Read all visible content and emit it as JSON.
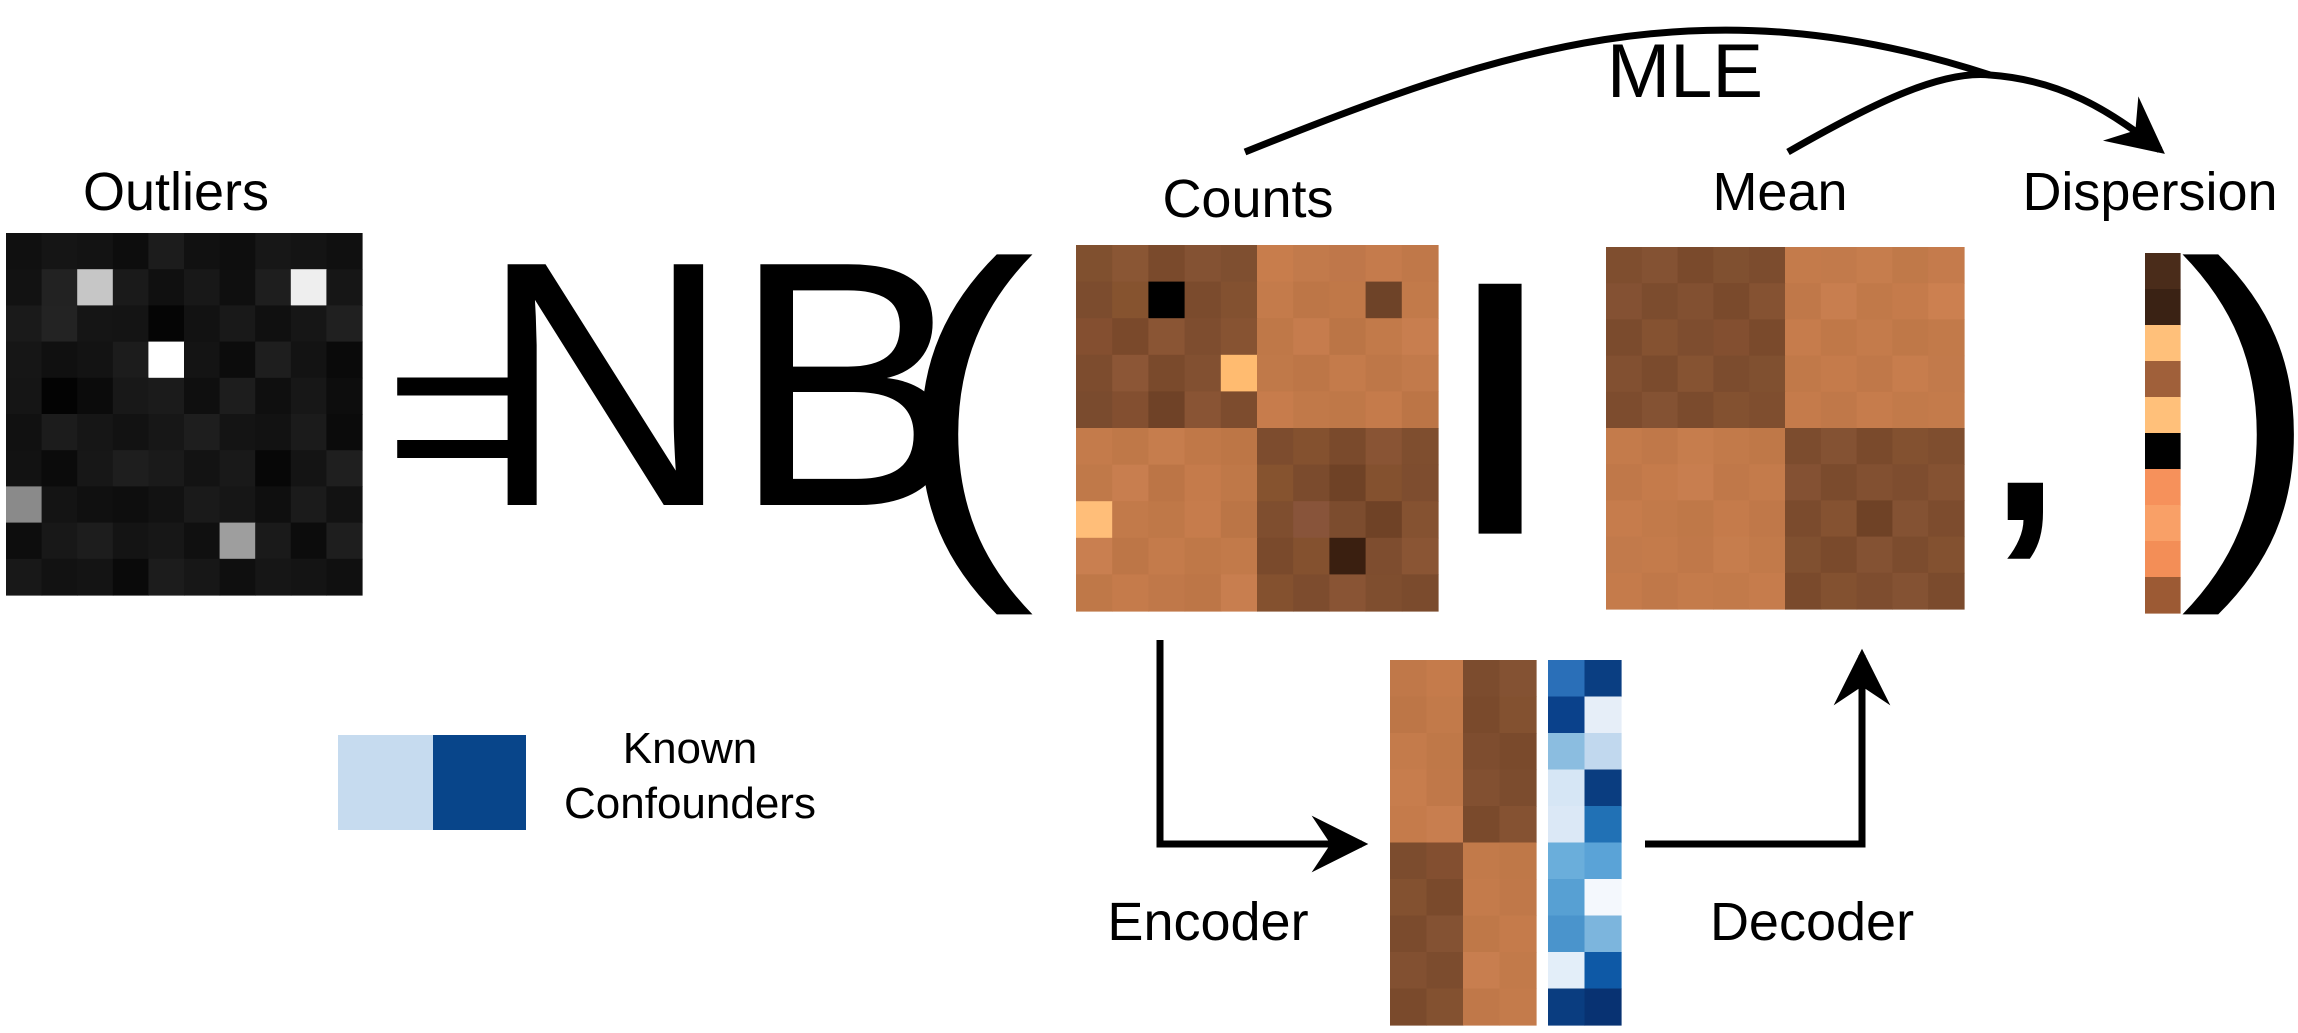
{
  "labels": {
    "outliers": "Outliers",
    "equals": "=",
    "nb": "NB",
    "open_paren": "(",
    "close_paren": ")",
    "bar": "|",
    "comma": ",",
    "counts": "Counts",
    "mean": "Mean",
    "dispersion": "Dispersion",
    "mle": "MLE",
    "encoder": "Encoder",
    "decoder": "Decoder",
    "legend_line1": "Known",
    "legend_line2": "Confounders"
  },
  "legend_colors": [
    "#c6dbef",
    "#08458a"
  ],
  "outliers_grid": [
    [
      "#101010",
      "#151515",
      "#131313",
      "#0d0d0d",
      "#1c1c1c",
      "#111111",
      "#0e0e0e",
      "#171717",
      "#141414",
      "#101010"
    ],
    [
      "#121212",
      "#222222",
      "#c6c6c6",
      "#1a1a1a",
      "#101010",
      "#181818",
      "#0f0f0f",
      "#1e1e1e",
      "#eeeeee",
      "#161616"
    ],
    [
      "#1a1a1a",
      "#232323",
      "#151515",
      "#141414",
      "#050505",
      "#121212",
      "#191919",
      "#101010",
      "#161616",
      "#202020"
    ],
    [
      "#161616",
      "#101010",
      "#131313",
      "#1c1c1c",
      "#ffffff",
      "#141414",
      "#0c0c0c",
      "#1e1e1e",
      "#131313",
      "#0a0a0a"
    ],
    [
      "#151515",
      "#030303",
      "#0b0b0b",
      "#181818",
      "#1b1b1b",
      "#0f0f0f",
      "#1d1d1d",
      "#0f0f0f",
      "#171717",
      "#0d0d0d"
    ],
    [
      "#111111",
      "#1c1c1c",
      "#161616",
      "#121212",
      "#171717",
      "#1e1e1e",
      "#141414",
      "#121212",
      "#1b1b1b",
      "#0b0b0b"
    ],
    [
      "#121212",
      "#0b0b0b",
      "#171717",
      "#1e1e1e",
      "#1a1a1a",
      "#131313",
      "#191919",
      "#070707",
      "#141414",
      "#1f1f1f"
    ],
    [
      "#8a8a8a",
      "#141414",
      "#101010",
      "#0e0e0e",
      "#121212",
      "#1a1a1a",
      "#161616",
      "#0f0f0f",
      "#1b1b1b",
      "#121212"
    ],
    [
      "#0d0d0d",
      "#181818",
      "#1d1d1d",
      "#141414",
      "#171717",
      "#101010",
      "#9e9e9e",
      "#1a1a1a",
      "#0c0c0c",
      "#1e1e1e"
    ],
    [
      "#181818",
      "#121212",
      "#141414",
      "#0a0a0a",
      "#1c1c1c",
      "#171717",
      "#0f0f0f",
      "#161616",
      "#141414",
      "#101010"
    ]
  ],
  "counts_grid": [
    [
      "#80502f",
      "#8a5634",
      "#7a4a2c",
      "#845233",
      "#7f4f30",
      "#c87d4c",
      "#c27a4b",
      "#bf774a",
      "#c57b4c",
      "#c07849"
    ],
    [
      "#7c4c2e",
      "#86532f",
      "#000000",
      "#7b4b2d",
      "#835130",
      "#c47b4b",
      "#bd7647",
      "#c07848",
      "#6e4328",
      "#c27a4a"
    ],
    [
      "#844f30",
      "#7a492b",
      "#8a5534",
      "#7e4d2f",
      "#875332",
      "#bf7848",
      "#c67c4d",
      "#bb7546",
      "#c27a4a",
      "#c87e4f"
    ],
    [
      "#7d4c2e",
      "#8c5636",
      "#7a4a2c",
      "#825031",
      "#ffbb70",
      "#c07949",
      "#bd7647",
      "#c47b4b",
      "#be7748",
      "#c27a4b"
    ],
    [
      "#7a4b2e",
      "#834f30",
      "#6f4227",
      "#895434",
      "#7d4c2e",
      "#c77c4c",
      "#c17949",
      "#bf7848",
      "#c57b4b",
      "#bc7546"
    ],
    [
      "#c47b4b",
      "#bf7848",
      "#c67d4d",
      "#c07848",
      "#bd7646",
      "#7d4c2e",
      "#84512f",
      "#7a4a2c",
      "#895434",
      "#7f4e2f"
    ],
    [
      "#c07949",
      "#c87e4f",
      "#bc7546",
      "#c57b4b",
      "#bf7848",
      "#86532f",
      "#7b4b2d",
      "#6f4226",
      "#84512f",
      "#7e4d2f"
    ],
    [
      "#ffbe79",
      "#c27a4a",
      "#bf7848",
      "#c67c4c",
      "#bb7546",
      "#7f4e2f",
      "#88543a",
      "#7c4c2e",
      "#6f4226",
      "#855231"
    ],
    [
      "#c97f50",
      "#bd7647",
      "#c47b4b",
      "#bf7848",
      "#c27a4a",
      "#7a4a2c",
      "#84512f",
      "#3a1f10",
      "#7e4d2f",
      "#8a5534"
    ],
    [
      "#bf7848",
      "#c57b4b",
      "#c07849",
      "#bd7647",
      "#c87e4f",
      "#84512f",
      "#7d4c2e",
      "#895434",
      "#7f4e2f",
      "#7b4b2d"
    ]
  ],
  "mean_grid": [
    [
      "#7f4e2f",
      "#845233",
      "#7a4a2c",
      "#805030",
      "#7c4c2e",
      "#c47b4b",
      "#c27a4b",
      "#c67d4d",
      "#c07949",
      "#c57b4c"
    ],
    [
      "#845133",
      "#7c4c2e",
      "#825031",
      "#7a4a2c",
      "#855232",
      "#c07849",
      "#c87e4f",
      "#c17949",
      "#c57b4b",
      "#cc8050"
    ],
    [
      "#7b4b2d",
      "#855231",
      "#7e4d2f",
      "#834f30",
      "#7a4a2c",
      "#c67c4c",
      "#c07848",
      "#c47b4b",
      "#bf7848",
      "#c27a4a"
    ],
    [
      "#825031",
      "#7b4b2d",
      "#865332",
      "#7c4c2e",
      "#805030",
      "#c17949",
      "#c57b4b",
      "#c07849",
      "#c77d4d",
      "#c27a4b"
    ],
    [
      "#7d4c2e",
      "#845233",
      "#7b4b2d",
      "#835130",
      "#7f4e2f",
      "#c57b4b",
      "#c07849",
      "#c67c4c",
      "#c27a4a",
      "#c47b4b"
    ],
    [
      "#c47b4b",
      "#c07849",
      "#c67d4d",
      "#c27a4a",
      "#bf7848",
      "#7c4c2e",
      "#845233",
      "#7a4a2c",
      "#835130",
      "#7f4e2f"
    ],
    [
      "#c07849",
      "#c57b4b",
      "#c87e4f",
      "#c07849",
      "#c47b4b",
      "#845133",
      "#7b4b2d",
      "#825031",
      "#7e4d2f",
      "#855232"
    ],
    [
      "#c67c4c",
      "#c27a4a",
      "#bf7848",
      "#c57b4b",
      "#c07849",
      "#7b4b2d",
      "#855231",
      "#6f4226",
      "#845233",
      "#7d4c2e"
    ],
    [
      "#c27a4b",
      "#c47b4b",
      "#c07849",
      "#c67d4d",
      "#c27a4a",
      "#805030",
      "#7a4a2c",
      "#845233",
      "#7c4c2e",
      "#835130"
    ],
    [
      "#c57b4b",
      "#c07849",
      "#c47b4b",
      "#c27a4a",
      "#c67c4c",
      "#7a4a2c",
      "#835130",
      "#7e4d2f",
      "#845233",
      "#7b4b2d"
    ]
  ],
  "dispersion_col": [
    "#4a2c1a",
    "#3a2214",
    "#ffc07a",
    "#a0603a",
    "#ffc07a",
    "#000000",
    "#f6915b",
    "#f9a067",
    "#f38e57",
    "#9c5a34"
  ],
  "latent_grid": [
    [
      "#c07849",
      "#c57b4b",
      "#7c4c2e",
      "#845233"
    ],
    [
      "#bd7647",
      "#c27a4a",
      "#7a4a2c",
      "#835130"
    ],
    [
      "#c47b4b",
      "#bf7848",
      "#7e4d2f",
      "#7a4a2c"
    ],
    [
      "#c77d4d",
      "#c07849",
      "#825031",
      "#7c4c2e"
    ],
    [
      "#c57b4b",
      "#c87e4f",
      "#7a4a2c",
      "#855232"
    ],
    [
      "#7c4c2e",
      "#834f30",
      "#c27a4a",
      "#bf7848"
    ],
    [
      "#835130",
      "#7a4a2c",
      "#c47b4b",
      "#c07849"
    ],
    [
      "#7b4b2d",
      "#845233",
      "#bf7848",
      "#c57b4b"
    ],
    [
      "#825031",
      "#7c4c2e",
      "#c87e4f",
      "#c27a4a"
    ],
    [
      "#7a4a2c",
      "#835130",
      "#c07849",
      "#c47b4b"
    ]
  ],
  "confounder_grid": [
    [
      "#2a6fb8",
      "#0a3e82"
    ],
    [
      "#0a418b",
      "#e6eef8"
    ],
    [
      "#8bbde0",
      "#c1d8ee"
    ],
    [
      "#d6e6f5",
      "#0a3d80"
    ],
    [
      "#dbe8f6",
      "#2171b5"
    ],
    [
      "#6aaedb",
      "#5aa3d7"
    ],
    [
      "#57a0d3",
      "#f4f8fd"
    ],
    [
      "#4a94cc",
      "#7cb5dd"
    ],
    [
      "#e3eef9",
      "#0e59a6"
    ],
    [
      "#0a3d80",
      "#083272"
    ]
  ]
}
